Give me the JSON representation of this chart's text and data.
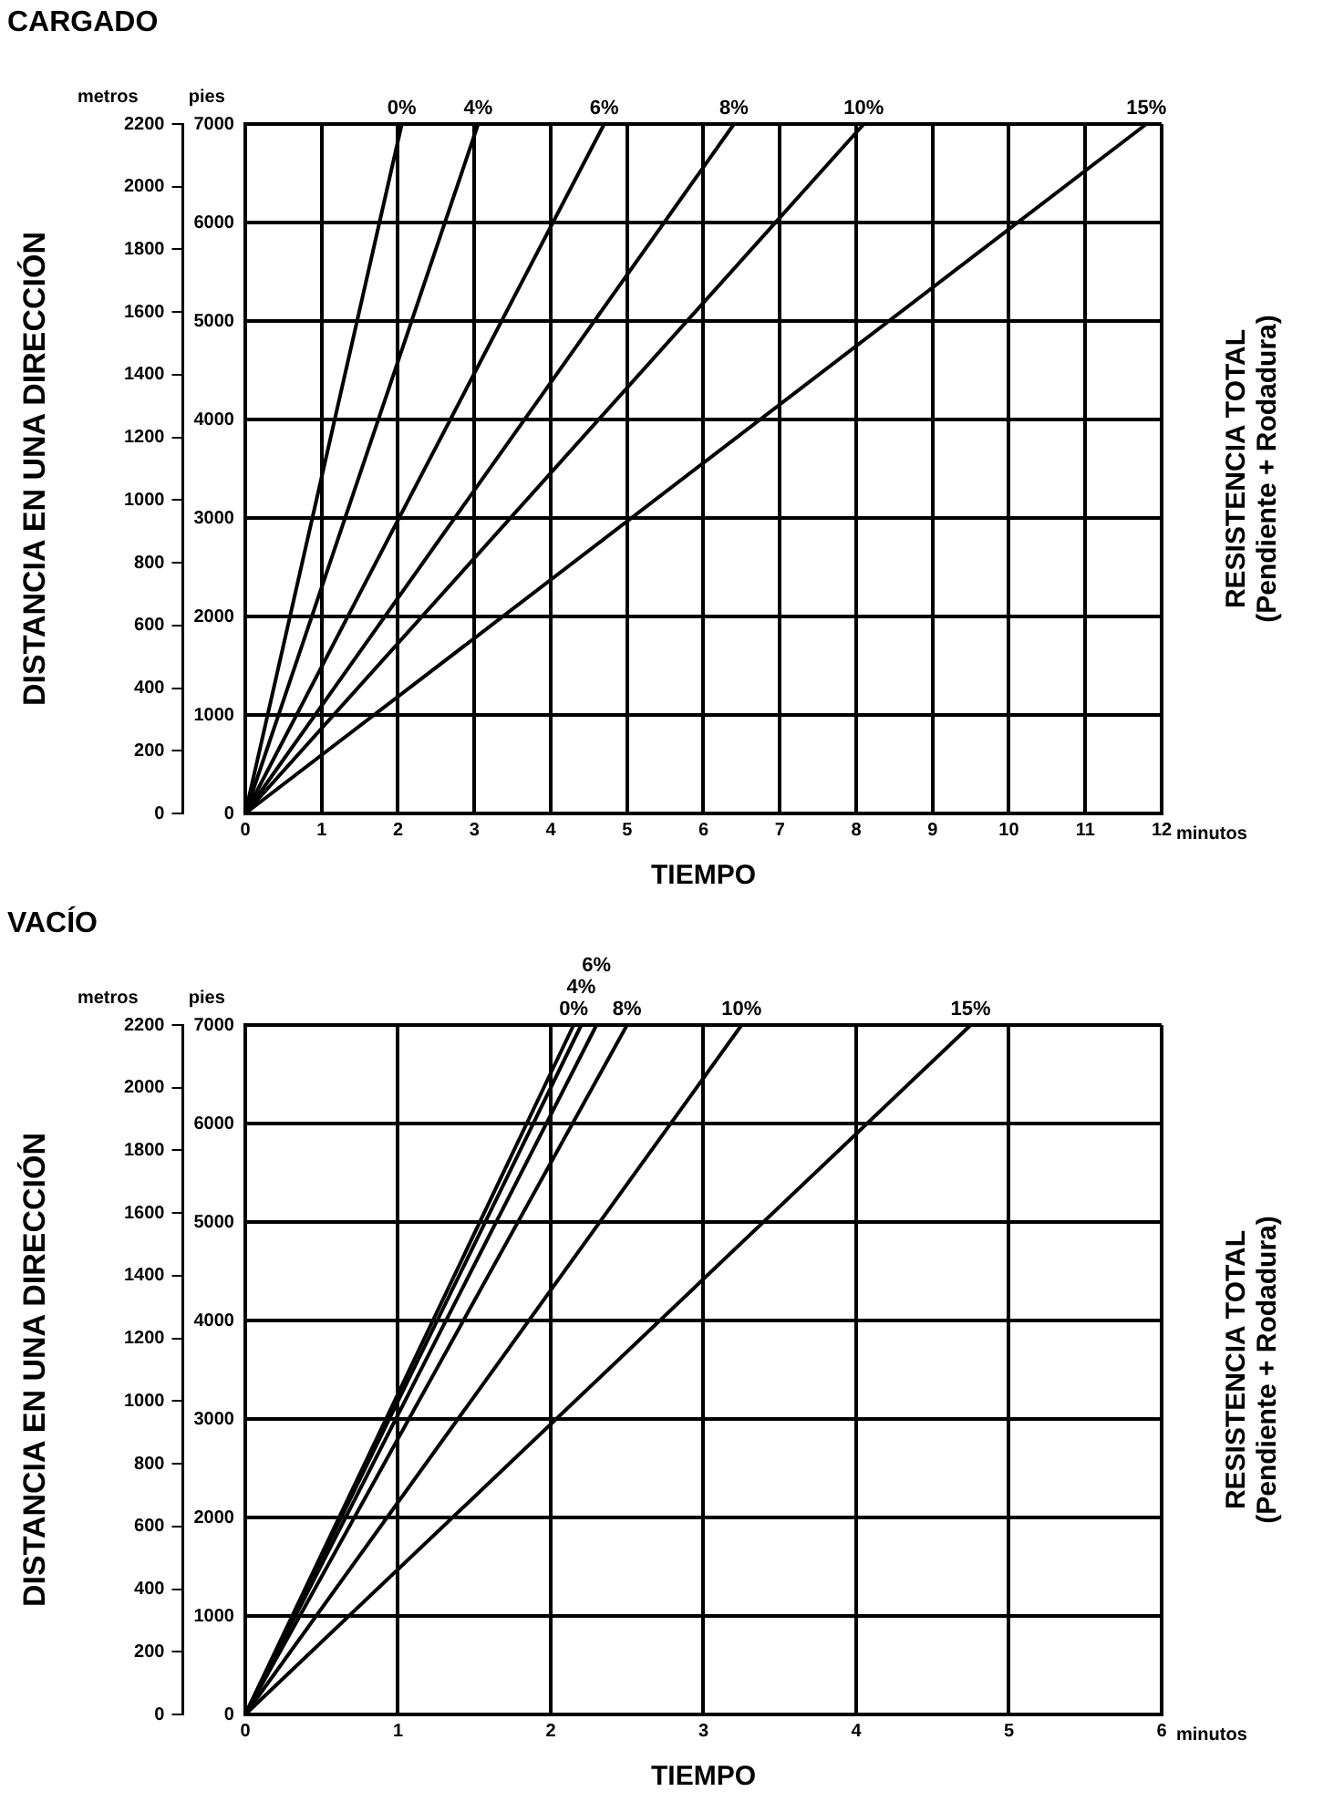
{
  "chart_data": [
    {
      "type": "line",
      "title": "CARGADO",
      "xlabel": "TIEMPO",
      "ylabel": "DISTANCIA EN UNA DIRECCIÓN",
      "legend_title": "RESISTENCIA TOTAL\n(Pendiente + Rodadura)",
      "annotations": [
        "metros",
        "pies",
        "minutos"
      ],
      "xlim": [
        0,
        12
      ],
      "xticks": [
        0,
        1,
        2,
        3,
        4,
        5,
        6,
        7,
        8,
        9,
        10,
        11,
        12
      ],
      "ylim": [
        0,
        2200
      ],
      "yticks": [
        0,
        200,
        400,
        600,
        800,
        1000,
        1200,
        1400,
        1600,
        1800,
        2000,
        2200
      ],
      "y2lim": [
        0,
        7000
      ],
      "y2ticks": [
        0,
        1000,
        2000,
        3000,
        4000,
        5000,
        6000,
        7000
      ],
      "grid": true,
      "legend": false,
      "marker": "none",
      "line_style": "solid",
      "series": [
        {
          "name": "0%",
          "color": "#000000",
          "axis": "y2",
          "x": [
            0,
            2.05
          ],
          "values": [
            0,
            7000
          ]
        },
        {
          "name": "4%",
          "color": "#000000",
          "axis": "y2",
          "x": [
            0,
            3.05
          ],
          "values": [
            0,
            7000
          ]
        },
        {
          "name": "6%",
          "color": "#000000",
          "axis": "y2",
          "x": [
            0,
            4.7
          ],
          "values": [
            0,
            7000
          ]
        },
        {
          "name": "8%",
          "color": "#000000",
          "axis": "y2",
          "x": [
            0,
            6.4
          ],
          "values": [
            0,
            7000
          ]
        },
        {
          "name": "10%",
          "color": "#000000",
          "axis": "y2",
          "x": [
            0,
            8.1
          ],
          "values": [
            0,
            7000
          ]
        },
        {
          "name": "15%",
          "color": "#000000",
          "axis": "y2",
          "x": [
            0,
            11.8
          ],
          "values": [
            0,
            7000
          ]
        }
      ]
    },
    {
      "type": "line",
      "title": "VACÍO",
      "xlabel": "TIEMPO",
      "ylabel": "DISTANCIA EN UNA DIRECCIÓN",
      "legend_title": "RESISTENCIA TOTAL\n(Pendiente + Rodadura)",
      "annotations": [
        "metros",
        "pies",
        "minutos"
      ],
      "xlim": [
        0,
        6
      ],
      "xticks": [
        0,
        1,
        2,
        3,
        4,
        5,
        6
      ],
      "ylim": [
        0,
        2200
      ],
      "yticks": [
        0,
        200,
        400,
        600,
        800,
        1000,
        1200,
        1400,
        1600,
        1800,
        2000,
        2200
      ],
      "y2lim": [
        0,
        7000
      ],
      "y2ticks": [
        0,
        1000,
        2000,
        3000,
        4000,
        5000,
        6000,
        7000
      ],
      "grid": true,
      "legend": false,
      "marker": "none",
      "line_style": "solid",
      "series": [
        {
          "name": "0%",
          "color": "#000000",
          "axis": "y2",
          "x": [
            0,
            2.15
          ],
          "values": [
            0,
            7000
          ]
        },
        {
          "name": "4%",
          "color": "#000000",
          "axis": "y2",
          "x": [
            0,
            2.2
          ],
          "values": [
            0,
            7000
          ]
        },
        {
          "name": "6%",
          "color": "#000000",
          "axis": "y2",
          "x": [
            0,
            2.3
          ],
          "values": [
            0,
            7000
          ]
        },
        {
          "name": "8%",
          "color": "#000000",
          "axis": "y2",
          "x": [
            0,
            2.5
          ],
          "values": [
            0,
            7000
          ]
        },
        {
          "name": "10%",
          "color": "#000000",
          "axis": "y2",
          "x": [
            0,
            3.25
          ],
          "values": [
            0,
            7000
          ]
        },
        {
          "name": "15%",
          "color": "#000000",
          "axis": "y2",
          "x": [
            0,
            4.75
          ],
          "values": [
            0,
            7000
          ]
        }
      ]
    }
  ]
}
